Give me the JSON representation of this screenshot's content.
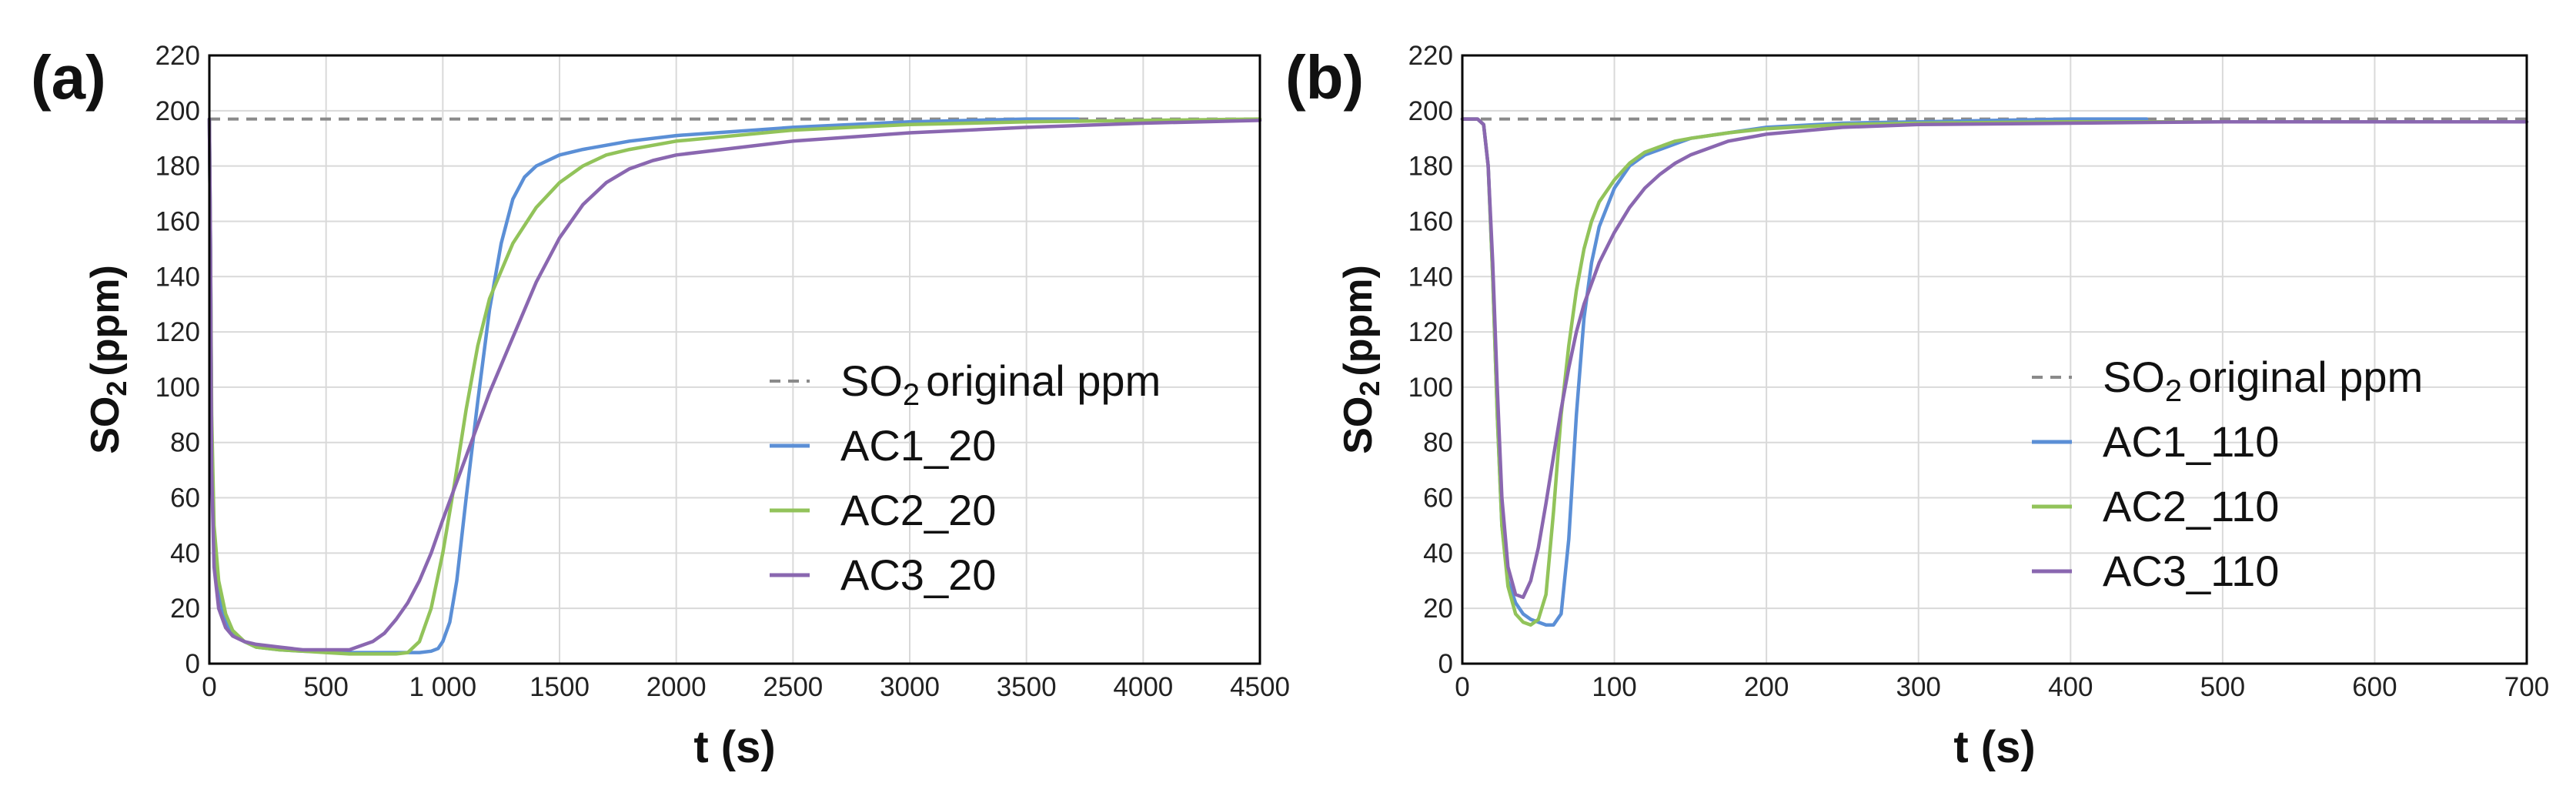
{
  "chart_data": [
    {
      "type": "line",
      "panel_label": "(a)",
      "xlabel": "t (s)",
      "ylabel_main": "SO",
      "ylabel_sub": "2",
      "ylabel_tail": "(ppm)",
      "xlim": [
        0,
        4500
      ],
      "ylim": [
        0,
        220
      ],
      "xticks": [
        0,
        500,
        1000,
        1500,
        2000,
        2500,
        3000,
        3500,
        4000,
        4500
      ],
      "xtick_labels": [
        "0",
        "500",
        "1 000",
        "1500",
        "2000",
        "2500",
        "3000",
        "3500",
        "4000",
        "4500"
      ],
      "yticks": [
        0,
        20,
        40,
        60,
        80,
        100,
        120,
        140,
        160,
        180,
        200,
        220
      ],
      "grid": true,
      "legend_position": "right",
      "reference": {
        "name_main": "SO",
        "name_sub": "2",
        "name_tail": "original ppm",
        "y": 197,
        "color": "#8a8a8a"
      },
      "series": [
        {
          "name": "AC1_20",
          "color": "#5b8fd6",
          "x": [
            0,
            5,
            10,
            20,
            40,
            70,
            100,
            150,
            200,
            300,
            400,
            500,
            600,
            700,
            800,
            850,
            900,
            950,
            980,
            1000,
            1030,
            1060,
            1100,
            1150,
            1200,
            1250,
            1300,
            1350,
            1400,
            1450,
            1500,
            1600,
            1800,
            2000,
            2500,
            3000,
            3500,
            3720
          ],
          "y": [
            197,
            150,
            80,
            40,
            25,
            15,
            11,
            8,
            6,
            5,
            4.5,
            4.2,
            4,
            4,
            4,
            4,
            4,
            4.5,
            5.5,
            8,
            15,
            30,
            60,
            95,
            128,
            152,
            168,
            176,
            180,
            182,
            184,
            186,
            189,
            191,
            194,
            196,
            197,
            197
          ]
        },
        {
          "name": "AC2_20",
          "color": "#92c35a",
          "x": [
            0,
            5,
            10,
            20,
            40,
            70,
            100,
            150,
            200,
            300,
            400,
            500,
            600,
            700,
            800,
            850,
            900,
            950,
            1000,
            1050,
            1100,
            1150,
            1200,
            1300,
            1400,
            1500,
            1600,
            1700,
            1800,
            2000,
            2500,
            3000,
            3500,
            4000,
            4500
          ],
          "y": [
            197,
            150,
            90,
            50,
            30,
            18,
            12,
            8,
            6,
            5,
            4.5,
            4,
            3.5,
            3.5,
            3.5,
            4,
            8,
            20,
            40,
            65,
            92,
            115,
            132,
            152,
            165,
            174,
            180,
            184,
            186,
            189,
            193,
            195,
            196,
            196.5,
            197
          ]
        },
        {
          "name": "AC3_20",
          "color": "#8a67b0",
          "x": [
            0,
            5,
            10,
            20,
            40,
            70,
            100,
            150,
            200,
            300,
            400,
            500,
            600,
            700,
            750,
            800,
            850,
            900,
            950,
            1000,
            1100,
            1200,
            1300,
            1400,
            1500,
            1600,
            1700,
            1800,
            1900,
            2000,
            2500,
            3000,
            3500,
            4000,
            4500
          ],
          "y": [
            197,
            150,
            70,
            35,
            20,
            13,
            10,
            8,
            7,
            6,
            5,
            5,
            5,
            8,
            11,
            16,
            22,
            30,
            40,
            52,
            75,
            98,
            118,
            138,
            154,
            166,
            174,
            179,
            182,
            184,
            189,
            192,
            194,
            195.5,
            196.5
          ]
        }
      ]
    },
    {
      "type": "line",
      "panel_label": "(b)",
      "xlabel": "t (s)",
      "ylabel_main": "SO",
      "ylabel_sub": "2",
      "ylabel_tail": "(ppm)",
      "xlim": [
        0,
        700
      ],
      "ylim": [
        0,
        220
      ],
      "xticks": [
        0,
        100,
        200,
        300,
        400,
        500,
        600,
        700
      ],
      "xtick_labels": [
        "0",
        "100",
        "200",
        "300",
        "400",
        "500",
        "600",
        "700"
      ],
      "yticks": [
        0,
        20,
        40,
        60,
        80,
        100,
        120,
        140,
        160,
        180,
        200,
        220
      ],
      "grid": true,
      "legend_position": "right",
      "reference": {
        "name_main": "SO",
        "name_sub": "2",
        "name_tail": "original ppm",
        "y": 197,
        "color": "#8a8a8a"
      },
      "series": [
        {
          "name": "AC1_110",
          "color": "#5b8fd6",
          "x": [
            0,
            10,
            14,
            17,
            20,
            23,
            26,
            30,
            35,
            40,
            45,
            50,
            55,
            60,
            65,
            70,
            75,
            80,
            85,
            90,
            100,
            110,
            120,
            130,
            140,
            150,
            175,
            200,
            250,
            300,
            350,
            400,
            450
          ],
          "y": [
            197,
            197,
            195,
            180,
            140,
            90,
            50,
            30,
            22,
            18,
            16,
            15,
            14,
            14,
            18,
            45,
            90,
            125,
            145,
            158,
            172,
            180,
            184,
            186,
            188,
            190,
            192,
            194,
            195.5,
            196,
            196.5,
            197,
            197
          ]
        },
        {
          "name": "AC2_110",
          "color": "#92c35a",
          "x": [
            0,
            10,
            14,
            17,
            20,
            23,
            26,
            30,
            35,
            40,
            45,
            50,
            55,
            60,
            65,
            70,
            75,
            80,
            85,
            90,
            100,
            110,
            120,
            130,
            140,
            150,
            175,
            200,
            250,
            300,
            400,
            500,
            600,
            700
          ],
          "y": [
            197,
            197,
            195,
            180,
            140,
            90,
            50,
            28,
            18,
            15,
            14,
            16,
            25,
            55,
            90,
            115,
            135,
            150,
            160,
            167,
            175,
            181,
            185,
            187,
            189,
            190,
            192,
            193.5,
            195,
            195.5,
            196,
            196,
            196,
            196
          ]
        },
        {
          "name": "AC3_110",
          "color": "#8a67b0",
          "x": [
            0,
            10,
            14,
            17,
            20,
            23,
            26,
            30,
            35,
            40,
            45,
            50,
            55,
            60,
            65,
            70,
            75,
            80,
            90,
            100,
            110,
            120,
            130,
            140,
            150,
            175,
            200,
            250,
            300,
            400,
            500,
            600,
            700
          ],
          "y": [
            197,
            197,
            195,
            180,
            145,
            100,
            60,
            35,
            25,
            24,
            30,
            42,
            58,
            75,
            92,
            107,
            120,
            130,
            145,
            156,
            165,
            172,
            177,
            181,
            184,
            189,
            191.5,
            194,
            195,
            195.5,
            196,
            196,
            196
          ]
        }
      ]
    }
  ]
}
